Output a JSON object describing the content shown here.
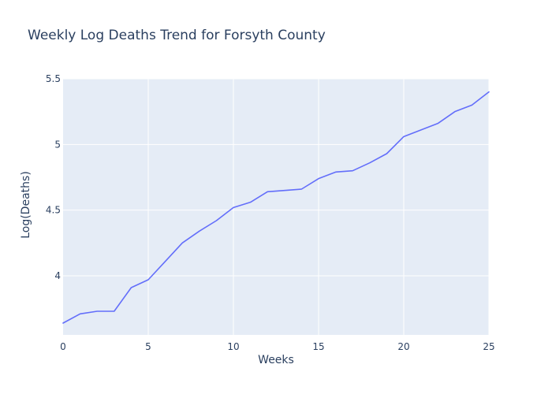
{
  "chart_data": {
    "type": "line",
    "title": "Weekly Log Deaths Trend for Forsyth County",
    "xlabel": "Weeks",
    "ylabel": "Log(Deaths)",
    "xlim": [
      0,
      25
    ],
    "ylim": [
      3.55,
      5.5
    ],
    "x_ticks": [
      0,
      5,
      10,
      15,
      20,
      25
    ],
    "x_tick_labels": [
      "0",
      "5",
      "10",
      "15",
      "20",
      "25"
    ],
    "y_ticks": [
      4,
      4.5,
      5,
      5.5
    ],
    "y_tick_labels": [
      "4",
      "4.5",
      "5",
      "5.5"
    ],
    "grid": true,
    "legend": false,
    "series": [
      {
        "color": "#636efa",
        "x": [
          0,
          1,
          2,
          3,
          4,
          5,
          6,
          7,
          8,
          9,
          10,
          11,
          12,
          13,
          14,
          15,
          16,
          17,
          18,
          19,
          20,
          21,
          22,
          23,
          24,
          25
        ],
        "y": [
          3.64,
          3.71,
          3.73,
          3.73,
          3.91,
          3.97,
          4.11,
          4.25,
          4.34,
          4.42,
          4.52,
          4.56,
          4.64,
          4.65,
          4.66,
          4.74,
          4.79,
          4.8,
          4.86,
          4.93,
          5.06,
          5.11,
          5.16,
          5.25,
          5.3,
          5.4
        ]
      }
    ],
    "colors": {
      "plot_background": "#e5ecf6",
      "grid": "#ffffff",
      "text": "#2a3f5f"
    }
  }
}
